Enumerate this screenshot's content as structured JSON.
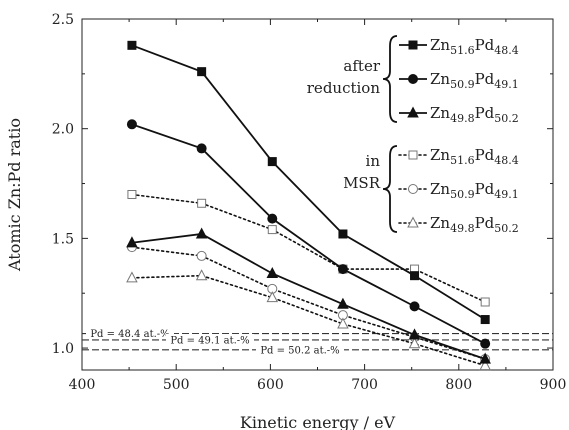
{
  "chart_data": {
    "type": "line",
    "xlabel": "Kinetic energy / eV",
    "ylabel": "Atomic Zn:Pd ratio",
    "xlim": [
      400,
      900
    ],
    "ylim": [
      0.9,
      2.5
    ],
    "xticks": [
      400,
      500,
      600,
      700,
      800,
      900
    ],
    "yticks": [
      1.0,
      1.5,
      2.0,
      2.5
    ],
    "x": [
      453,
      527,
      602,
      677,
      753,
      828
    ],
    "series": [
      {
        "name": "Zn51.6Pd48.4",
        "group": "after reduction",
        "marker": "square",
        "filled": true,
        "line": "solid",
        "values": [
          2.38,
          2.26,
          1.85,
          1.52,
          1.33,
          1.13
        ]
      },
      {
        "name": "Zn50.9Pd49.1",
        "group": "after reduction",
        "marker": "circle",
        "filled": true,
        "line": "solid",
        "values": [
          2.02,
          1.91,
          1.59,
          1.36,
          1.19,
          1.02
        ]
      },
      {
        "name": "Zn49.8Pd50.2",
        "group": "after reduction",
        "marker": "triangle",
        "filled": true,
        "line": "solid",
        "values": [
          1.48,
          1.52,
          1.34,
          1.2,
          1.06,
          0.95
        ]
      },
      {
        "name": "Zn51.6Pd48.4",
        "group": "in MSR",
        "marker": "square",
        "filled": false,
        "line": "dotted",
        "values": [
          1.7,
          1.66,
          1.54,
          1.36,
          1.36,
          1.21
        ]
      },
      {
        "name": "Zn50.9Pd49.1",
        "group": "in MSR",
        "marker": "circle",
        "filled": false,
        "line": "dotted",
        "values": [
          1.46,
          1.42,
          1.27,
          1.15,
          1.05,
          0.95
        ]
      },
      {
        "name": "Zn49.8Pd50.2",
        "group": "in MSR",
        "marker": "triangle",
        "filled": false,
        "line": "dotted",
        "values": [
          1.32,
          1.33,
          1.23,
          1.11,
          1.02,
          0.92
        ]
      }
    ],
    "reference_lines": [
      {
        "label": "Pd = 48.4 at.-%",
        "y": 1.066
      },
      {
        "label": "Pd = 49.1 at.-%",
        "y": 1.037
      },
      {
        "label": "Pd = 50.2 at.-%",
        "y": 0.992
      }
    ],
    "legend_groups": [
      {
        "label_lines": [
          "after",
          "reduction"
        ],
        "series": [
          0,
          1,
          2
        ]
      },
      {
        "label_lines": [
          "in",
          "MSR"
        ],
        "series": [
          3,
          4,
          5
        ]
      }
    ],
    "legend_labels": [
      {
        "base1": "Zn",
        "sub1": "51.6",
        "base2": "Pd",
        "sub2": "48.4"
      },
      {
        "base1": "Zn",
        "sub1": "50.9",
        "base2": "Pd",
        "sub2": "49.1"
      },
      {
        "base1": "Zn",
        "sub1": "49.8",
        "base2": "Pd",
        "sub2": "50.2"
      },
      {
        "base1": "Zn",
        "sub1": "51.6",
        "base2": "Pd",
        "sub2": "48.4"
      },
      {
        "base1": "Zn",
        "sub1": "50.9",
        "base2": "Pd",
        "sub2": "49.1"
      },
      {
        "base1": "Zn",
        "sub1": "49.8",
        "base2": "Pd",
        "sub2": "50.2"
      }
    ],
    "legend_placement": "top-right",
    "grid": false
  }
}
